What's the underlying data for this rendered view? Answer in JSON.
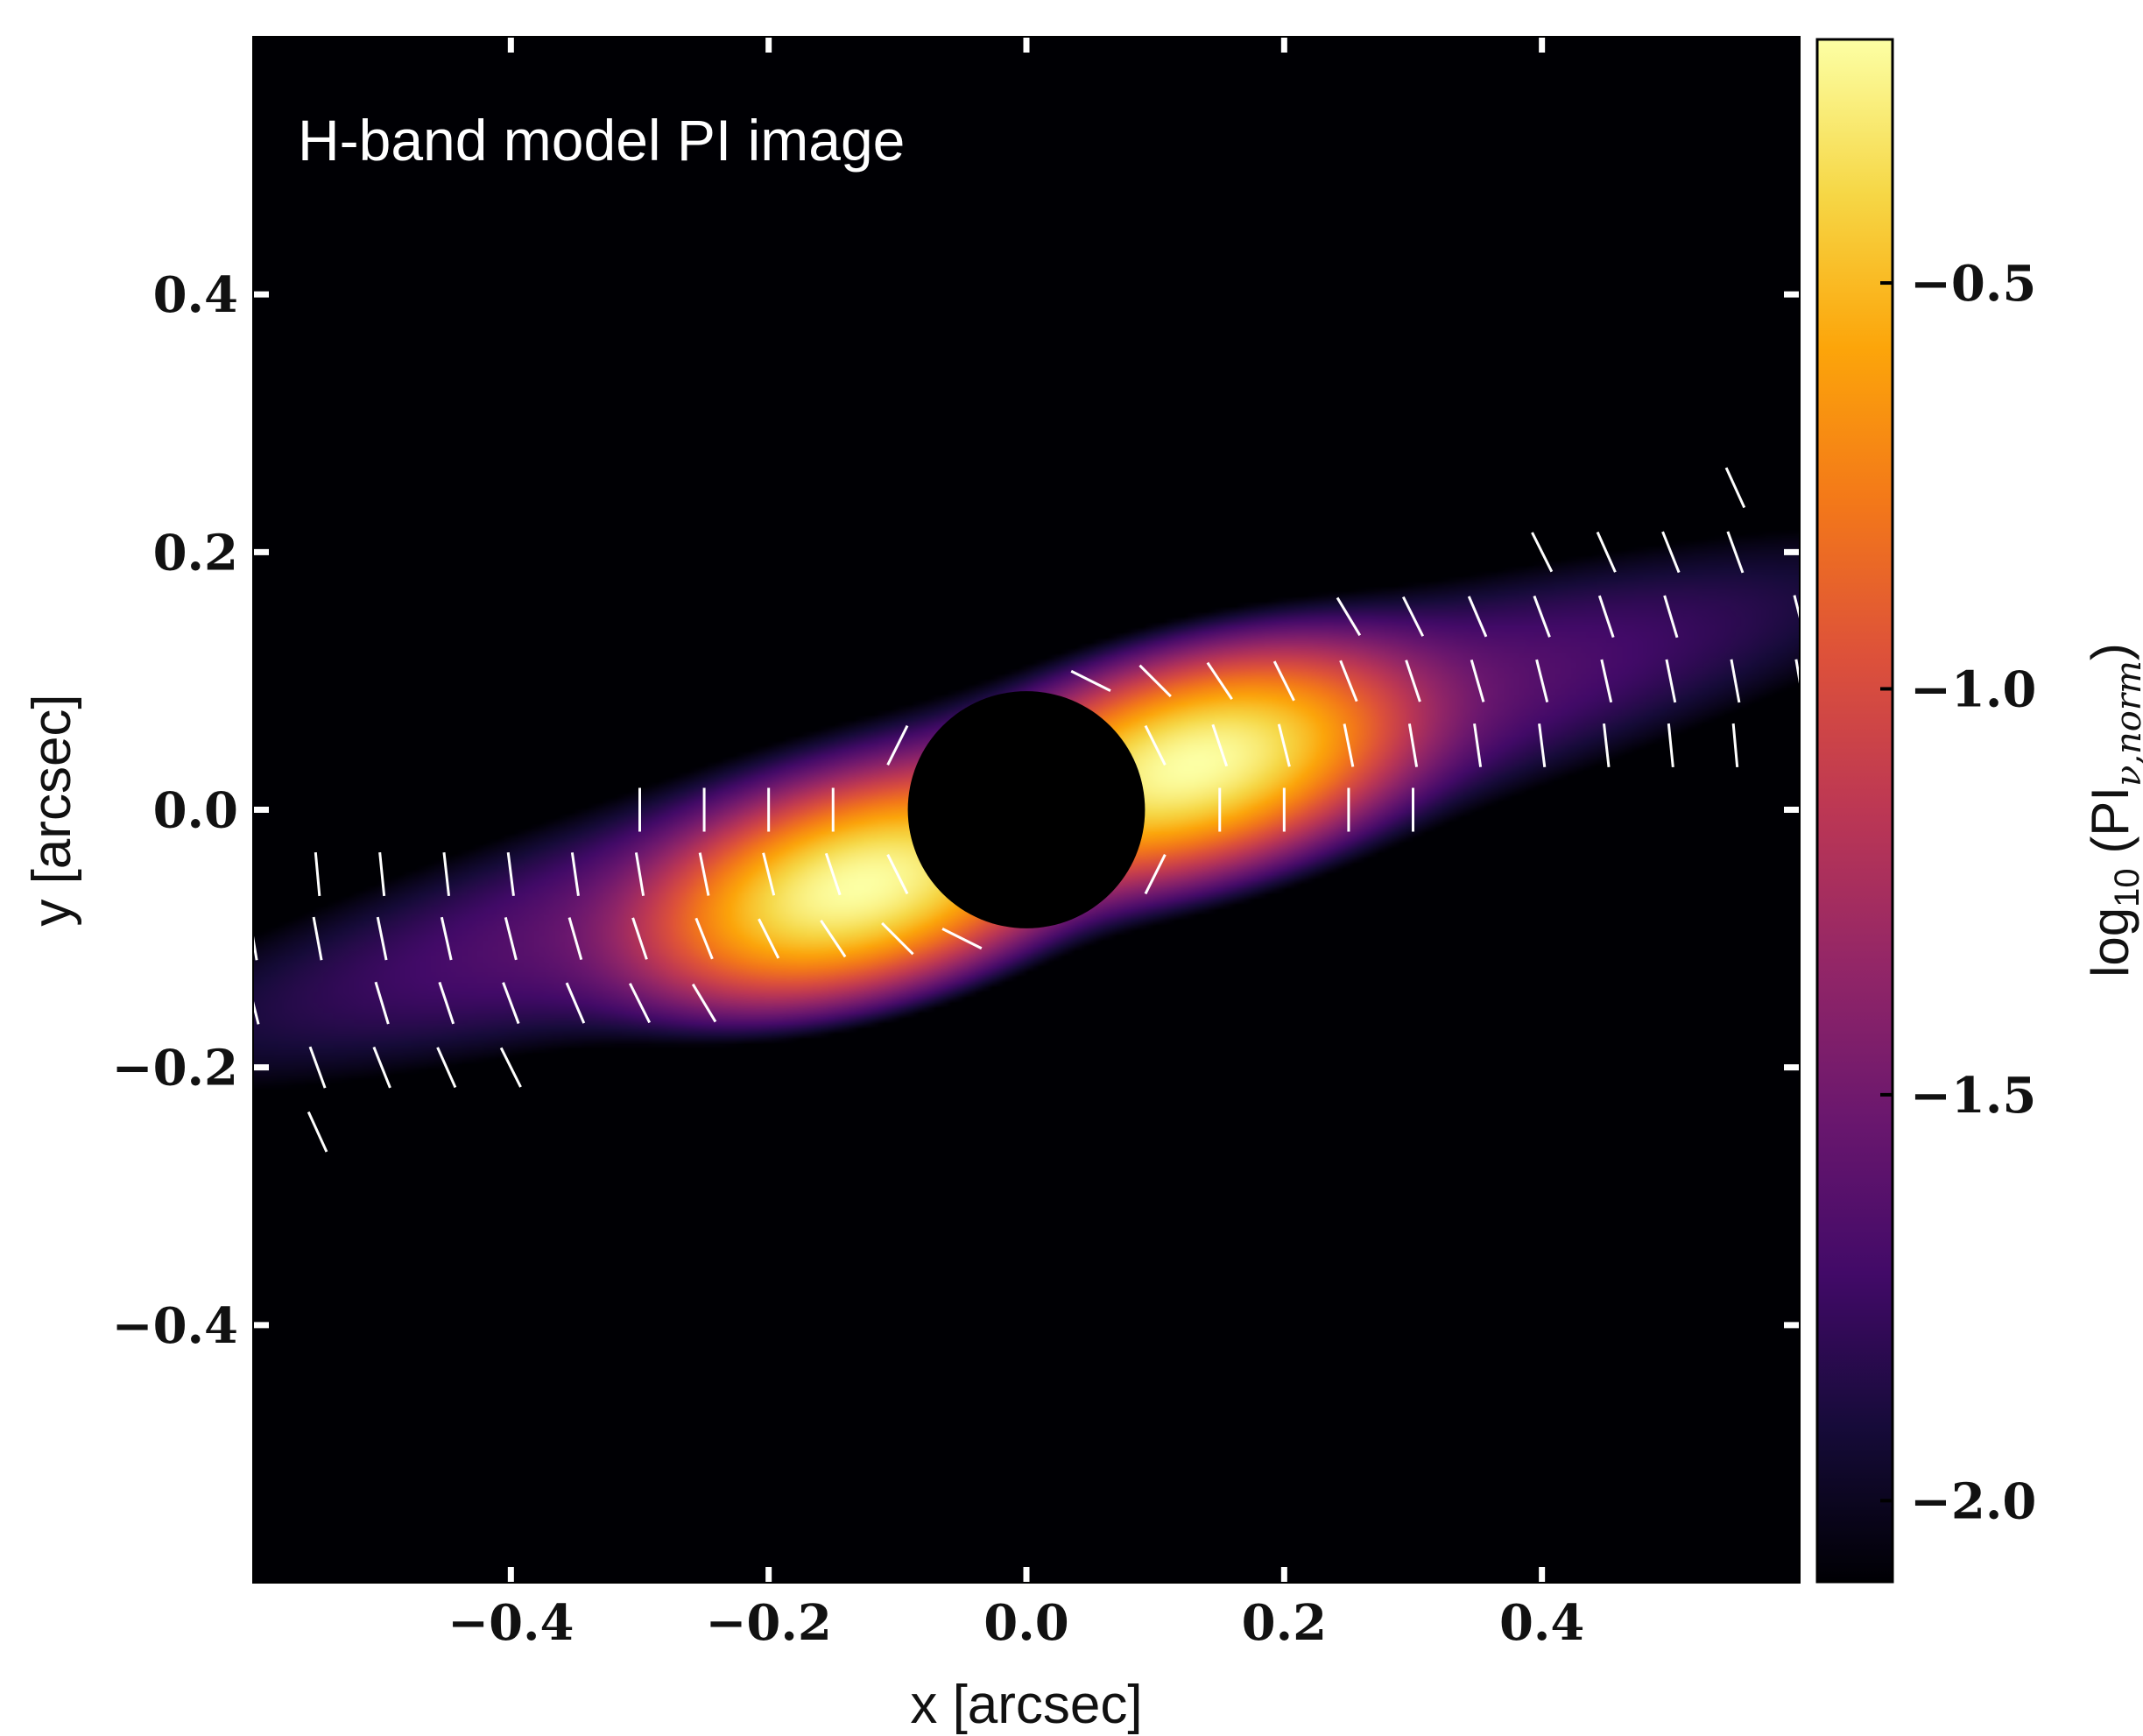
{
  "chart_data": {
    "type": "heatmap",
    "title": "H-band model PI image",
    "xlabel": "x [arcsec]",
    "ylabel": "y [arcsec]",
    "xlim": [
      -0.6,
      0.6
    ],
    "ylim": [
      -0.6,
      0.6
    ],
    "x_ticks": [
      -0.4,
      -0.2,
      0.0,
      0.2,
      0.4
    ],
    "y_ticks": [
      -0.4,
      -0.2,
      0.0,
      0.2,
      0.4
    ],
    "x_tick_labels": [
      "−0.4",
      "−0.2",
      "0.0",
      "0.2",
      "0.4"
    ],
    "y_tick_labels": [
      "−0.4",
      "−0.2",
      "0.0",
      "0.2",
      "0.4"
    ],
    "grid": false,
    "colormap": "inferno",
    "colorbar": {
      "label_main": "log",
      "label_sub": "10",
      "label_open": " (PI",
      "label_sub2": "ν,norm",
      "label_close": ")",
      "range": [
        -2.1,
        -0.2
      ],
      "ticks": [
        -0.5,
        -1.0,
        -1.5,
        -2.0
      ],
      "tick_labels": [
        "−0.5",
        "−1.0",
        "−1.5",
        "−2.0"
      ]
    },
    "disk_model": {
      "position_angle_deg": 15,
      "major_sigma_arcsec": 0.42,
      "minor_sigma_arcsec": 0.058,
      "bright_peaks": [
        {
          "x": -0.13,
          "y": -0.06,
          "log_pi": -0.25
        },
        {
          "x": 0.13,
          "y": 0.035,
          "log_pi": -0.25
        }
      ],
      "outer_log_pi": -1.85
    },
    "coronagraph_mask": {
      "x": 0.0,
      "y": 0.0,
      "radius_arcsec": 0.092
    }
  }
}
